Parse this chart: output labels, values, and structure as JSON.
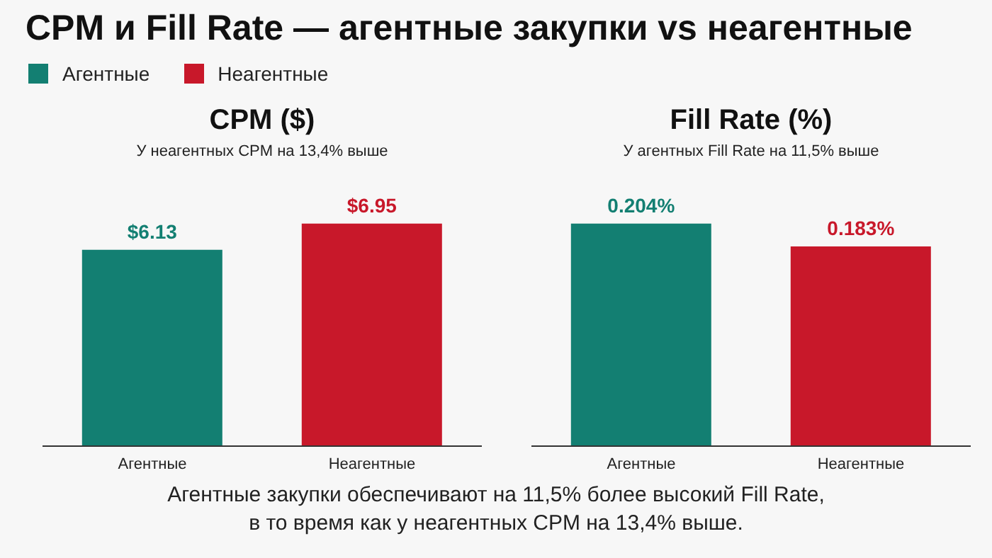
{
  "chart_data": [
    {
      "type": "other",
      "title": "CPM и Fill Rate — агентные закупки vs неагентные",
      "annotations": [
        "Агентные закупки обеспечивают на 11,5% более высокий Fill Rate,",
        "в то время как у неагентных CPM на 13,4% выше."
      ]
    },
    {
      "type": "bar",
      "title": "CPM ($)",
      "subtitle": "У неагентных CPM на 13,4% выше",
      "categories": [
        "Агентные",
        "Неагентные"
      ],
      "legend": "top left",
      "series": [
        {
          "name": "Агентные",
          "color": "#137f72",
          "values": [
            6.13,
            null
          ],
          "value_labels": [
            "$6.13",
            null
          ]
        },
        {
          "name": "Неагентные",
          "color": "#c8182a",
          "values": [
            null,
            6.95
          ],
          "value_labels": [
            null,
            "$6.95"
          ]
        }
      ]
    },
    {
      "type": "bar",
      "title": "Fill Rate (%)",
      "subtitle": "У агентных Fill Rate на 11,5% выше",
      "categories": [
        "Агентные",
        "Неагентные"
      ],
      "series": [
        {
          "color": "#137f72",
          "values": [
            0.204,
            null
          ],
          "value_labels": [
            "0.204%",
            null
          ]
        },
        {
          "color": "#c8182a",
          "values": [
            null,
            0.183
          ],
          "value_labels": [
            null,
            "0.183%"
          ]
        }
      ]
    }
  ]
}
